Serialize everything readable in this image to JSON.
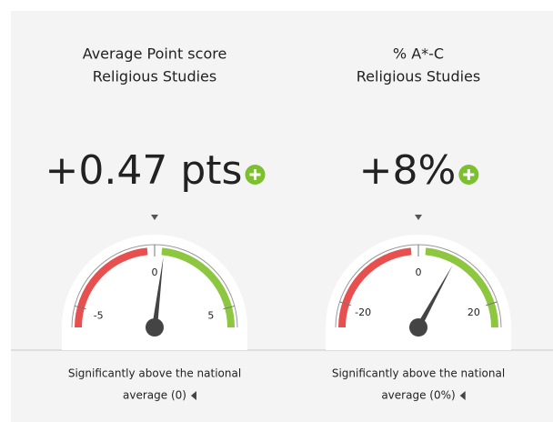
{
  "chart_data": [
    {
      "type": "gauge",
      "title": [
        "Average Point score",
        "Religious Studies"
      ],
      "value": 0.47,
      "value_label": "+0.47 pts",
      "ylim": [
        -6,
        6
      ],
      "yticks": [
        -5,
        0,
        5
      ],
      "note": [
        "Significantly above the national",
        "average (0)"
      ]
    },
    {
      "type": "gauge",
      "title": [
        "% A*-C",
        "Religious Studies"
      ],
      "value": 8,
      "value_label": "+8%",
      "ylim": [
        -25,
        25
      ],
      "yticks": [
        -20,
        0,
        20
      ],
      "note": [
        "Significantly above the national",
        "average (0%)"
      ]
    }
  ]
}
